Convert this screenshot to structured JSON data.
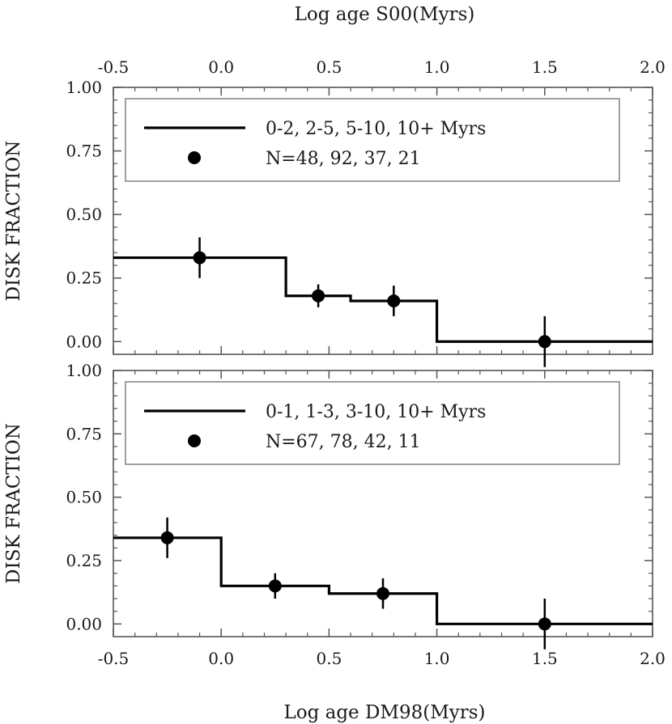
{
  "figure": {
    "top_axis_title": "Log age S00(Myrs)",
    "bottom_axis_title": "Log age DM98(Myrs)"
  },
  "chart_data": [
    {
      "type": "line",
      "style": "step histogram with error-bar points",
      "x_axis_title": "Log age S00(Myrs)",
      "ylabel": "DISK FRACTION",
      "xlim": [
        -0.5,
        2.0
      ],
      "ylim": [
        -0.05,
        1.0
      ],
      "x_ticks": [
        "-0.5",
        "0.0",
        "0.5",
        "1.0",
        "1.5",
        "2.0"
      ],
      "y_ticks": [
        "0.00",
        "0.25",
        "0.50",
        "0.75",
        "1.00"
      ],
      "legend": {
        "position": "top",
        "line_label": "0-2, 2-5, 5-10, 10+ Myrs",
        "marker_label": "N=48, 92, 37, 21"
      },
      "step_edges": [
        -0.5,
        0.3,
        0.6,
        1.0,
        2.0
      ],
      "step_values": [
        0.33,
        0.18,
        0.16,
        0.0
      ],
      "points": [
        {
          "x": -0.1,
          "y": 0.33,
          "err": 0.08
        },
        {
          "x": 0.45,
          "y": 0.18,
          "err": 0.045
        },
        {
          "x": 0.8,
          "y": 0.16,
          "err": 0.06
        },
        {
          "x": 1.5,
          "y": 0.0,
          "err": 0.1
        }
      ],
      "color": "#000000",
      "grid": false
    },
    {
      "type": "line",
      "style": "step histogram with error-bar points",
      "x_axis_title": "Log age DM98(Myrs)",
      "ylabel": "DISK FRACTION",
      "xlim": [
        -0.5,
        2.0
      ],
      "ylim": [
        -0.05,
        1.0
      ],
      "x_ticks": [
        "-0.5",
        "0.0",
        "0.5",
        "1.0",
        "1.5",
        "2.0"
      ],
      "y_ticks": [
        "0.00",
        "0.25",
        "0.50",
        "0.75",
        "1.00"
      ],
      "legend": {
        "position": "top",
        "line_label": "0-1, 1-3, 3-10, 10+ Myrs",
        "marker_label": "N=67, 78, 42, 11"
      },
      "step_edges": [
        -0.5,
        0.0,
        0.5,
        1.0,
        2.0
      ],
      "step_values": [
        0.34,
        0.15,
        0.12,
        0.0
      ],
      "points": [
        {
          "x": -0.25,
          "y": 0.34,
          "err": 0.08
        },
        {
          "x": 0.25,
          "y": 0.15,
          "err": 0.05
        },
        {
          "x": 0.75,
          "y": 0.12,
          "err": 0.06
        },
        {
          "x": 1.5,
          "y": 0.0,
          "err": 0.1
        }
      ],
      "color": "#000000",
      "grid": false
    }
  ]
}
